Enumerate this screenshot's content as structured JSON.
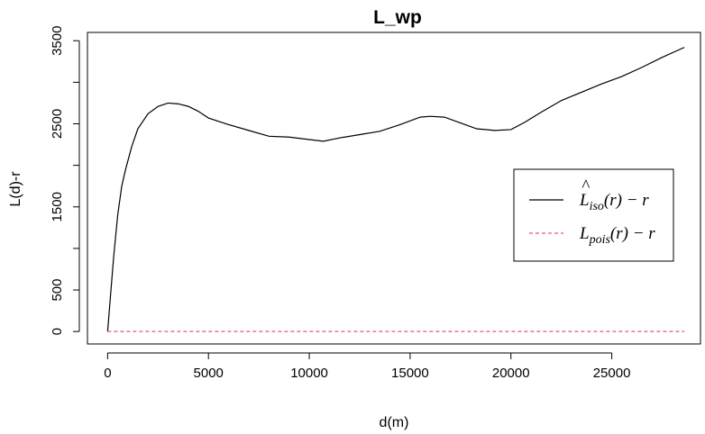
{
  "chart_data": {
    "type": "line",
    "title": "L_wp",
    "xlabel": "d(m)",
    "ylabel": "L(d)-r",
    "xlim": [
      -1000,
      29400
    ],
    "ylim": [
      -150,
      3600
    ],
    "x_ticks": [
      0,
      5000,
      10000,
      15000,
      20000,
      25000
    ],
    "x_tick_labels": [
      "0",
      "5000",
      "10000",
      "15000",
      "20000",
      "25000"
    ],
    "y_ticks": [
      0,
      500,
      1500,
      2500,
      3500
    ],
    "y_tick_labels": [
      "0",
      "500",
      "1500",
      "2500",
      "3500"
    ],
    "legend_position": "right",
    "series": [
      {
        "color": "#000000",
        "dash": "solid",
        "x": [
          0,
          150,
          300,
          500,
          700,
          900,
          1200,
          1500,
          2000,
          2500,
          3000,
          3500,
          4000,
          4500,
          5000,
          6000,
          7000,
          8000,
          9000,
          10000,
          10700,
          11500,
          12500,
          13500,
          14500,
          15500,
          16000,
          16700,
          17500,
          18300,
          19200,
          20000,
          20700,
          21500,
          22500,
          23500,
          24500,
          25500,
          26500,
          27500,
          28600
        ],
        "y": [
          0,
          450,
          900,
          1400,
          1750,
          1960,
          2230,
          2440,
          2620,
          2710,
          2750,
          2740,
          2710,
          2650,
          2570,
          2490,
          2420,
          2350,
          2340,
          2310,
          2290,
          2330,
          2370,
          2410,
          2490,
          2580,
          2590,
          2580,
          2510,
          2440,
          2420,
          2430,
          2520,
          2640,
          2780,
          2880,
          2980,
          3070,
          3180,
          3300,
          3420
        ]
      },
      {
        "color": "#e05a78",
        "dash": "dashed",
        "x": [
          0,
          28600
        ],
        "y": [
          0,
          0
        ]
      }
    ],
    "legend": {
      "entries": [
        {
          "main": "L",
          "hat": "^",
          "sub": "iso",
          "tail": "(r) − r"
        },
        {
          "main": "L",
          "hat": "",
          "sub": "pois",
          "tail": "(r) − r"
        }
      ]
    }
  }
}
